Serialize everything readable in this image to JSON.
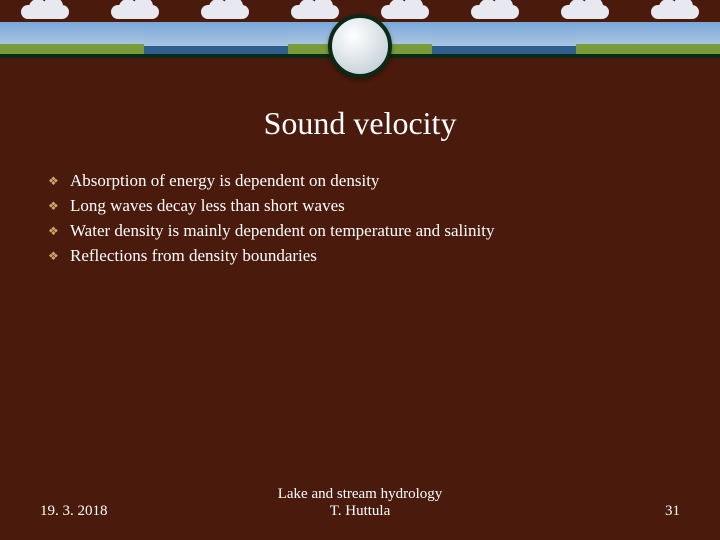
{
  "slide": {
    "title": "Sound velocity",
    "bullets": [
      "Absorption of energy is dependent on density",
      "Long waves decay less than short waves",
      "Water density is mainly dependent on temperature and salinity",
      "Reflections from density boundaries"
    ],
    "footer": {
      "date": "19. 3. 2018",
      "course": "Lake and stream hydrology",
      "author": "T. Huttula",
      "page": "31"
    },
    "colors": {
      "background": "#4a1a0d",
      "text": "#ffffff",
      "bullet_marker": "#c9a96a",
      "banner_line": "#0a2a15"
    }
  }
}
